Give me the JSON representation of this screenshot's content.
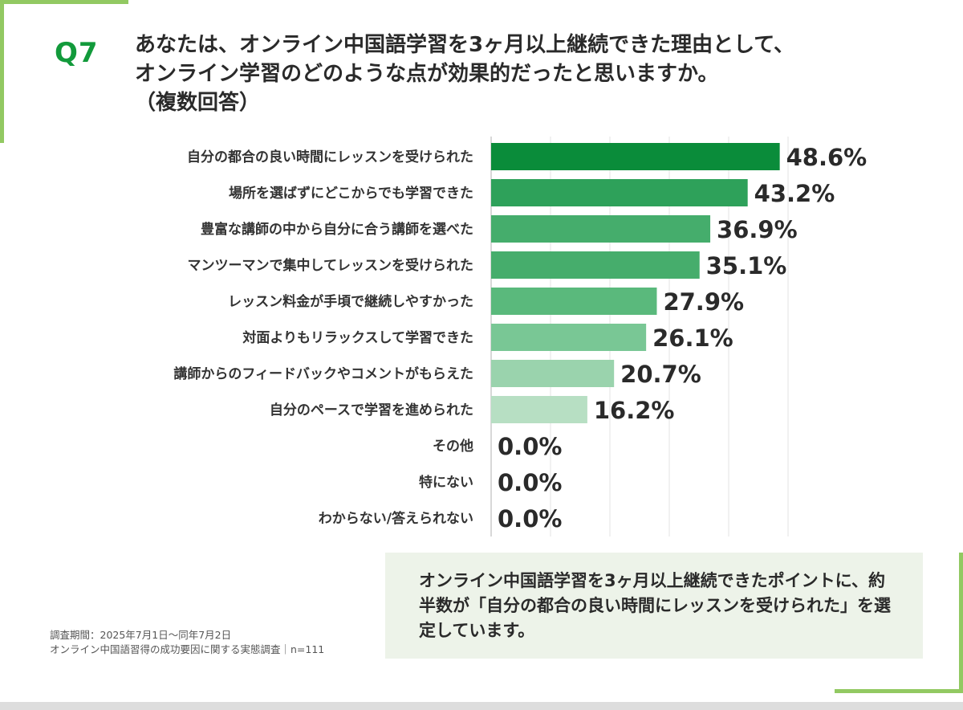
{
  "question": {
    "label": "Q7",
    "line1": "あなたは、オンライン中国語学習を3ヶ月以上継続できた理由として、",
    "line2": "オンライン学習のどのような点が効果的だったと思いますか。",
    "line3": "（複数回答）"
  },
  "chart_data": {
    "type": "bar",
    "orientation": "horizontal",
    "categories": [
      "自分の都合の良い時間にレッスンを受けられた",
      "場所を選ばずにどこからでも学習できた",
      "豊富な講師の中から自分に合う講師を選べた",
      "マンツーマンで集中してレッスンを受けられた",
      "レッスン料金が手頃で継続しやすかった",
      "対面よりもリラックスして学習できた",
      "講師からのフィードバックやコメントがもらえた",
      "自分のペースで学習を進められた",
      "その他",
      "特にない",
      "わからない/答えられない"
    ],
    "values": [
      48.6,
      43.2,
      36.9,
      35.1,
      27.9,
      26.1,
      20.7,
      16.2,
      0.0,
      0.0,
      0.0
    ],
    "value_labels": [
      "48.6%",
      "43.2%",
      "36.9%",
      "35.1%",
      "27.9%",
      "26.1%",
      "20.7%",
      "16.2%",
      "0.0%",
      "0.0%",
      "0.0%"
    ],
    "xlim": [
      0,
      50
    ],
    "grid": true,
    "bar_colors": [
      "#0a8c3a",
      "#2ea15a",
      "#45ad6c",
      "#46ad6c",
      "#5ab97c",
      "#79c795",
      "#9ad3ad",
      "#b7dfc3",
      "#ffffff",
      "#ffffff",
      "#ffffff"
    ]
  },
  "summary": {
    "text": "オンライン中国語学習を3ヶ月以上継続できたポイントに、約半数が「自分の都合の良い時間にレッスンを受けられた」を選定しています。"
  },
  "note": {
    "line1": "調査期間：2025年7月1日〜同年7月2日",
    "line2": "オンライン中国語習得の成功要因に関する実態調査｜n=111"
  }
}
